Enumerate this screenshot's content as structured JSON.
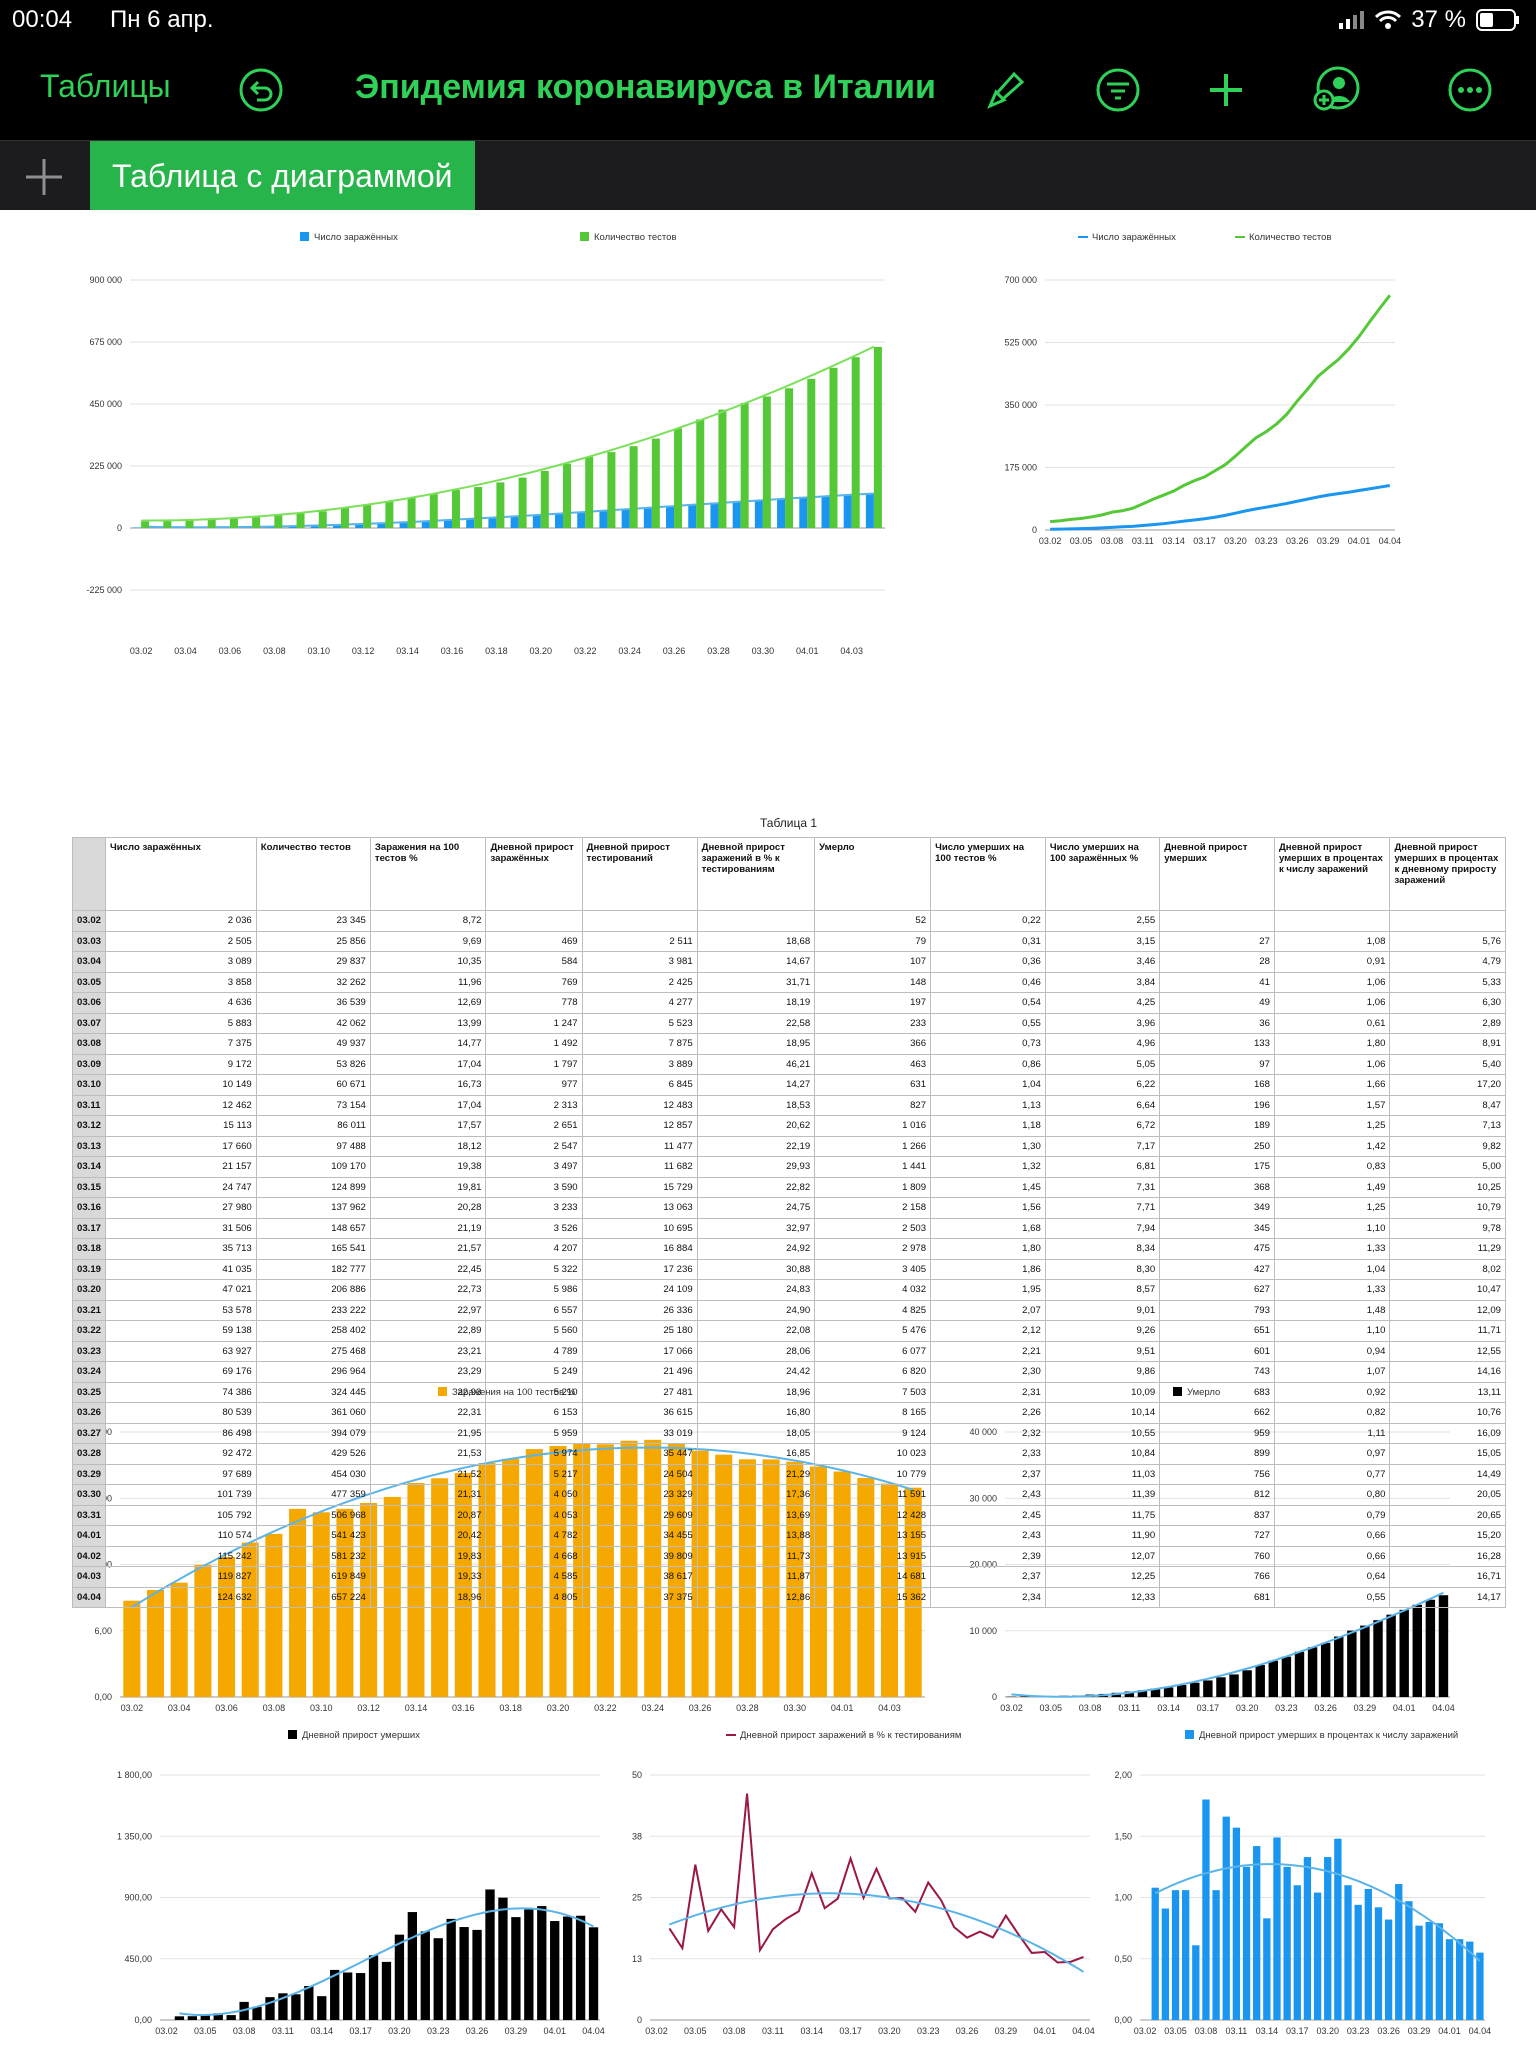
{
  "status": {
    "time": "00:04",
    "date": "Пн 6 апр.",
    "battery": "37 %"
  },
  "toolbar": {
    "back_label": "Таблицы",
    "title": "Эпидемия коронавируса в Италии"
  },
  "tabs": [
    {
      "label": "Таблица с диаграммой"
    }
  ],
  "table": {
    "title": "Таблица 1",
    "headers": [
      "Число заражённых",
      "Количество тестов",
      "Заражения на 100 тестов %",
      "Дневной прирост заражённых",
      "Дневной прирост тестирований",
      "Дневной прирост заражений в % к тестированиям",
      "Умерло",
      "Число умерших на 100 тестов %",
      "Число умерших на 100 заражённых %",
      "Дневной прирост умерших",
      "Дневной прирост умерших в процентах к числу заражений",
      "Дневной прирост умерших в процентах к дневному приросту заражений"
    ],
    "rows": [
      [
        "03.02",
        "2 036",
        "23 345",
        "8,72",
        "",
        "",
        "",
        "52",
        "0,22",
        "2,55",
        "",
        "",
        ""
      ],
      [
        "03.03",
        "2 505",
        "25 856",
        "9,69",
        "469",
        "2 511",
        "18,68",
        "79",
        "0,31",
        "3,15",
        "27",
        "1,08",
        "5,76"
      ],
      [
        "03.04",
        "3 089",
        "29 837",
        "10,35",
        "584",
        "3 981",
        "14,67",
        "107",
        "0,36",
        "3,46",
        "28",
        "0,91",
        "4,79"
      ],
      [
        "03.05",
        "3 858",
        "32 262",
        "11,96",
        "769",
        "2 425",
        "31,71",
        "148",
        "0,46",
        "3,84",
        "41",
        "1,06",
        "5,33"
      ],
      [
        "03.06",
        "4 636",
        "36 539",
        "12,69",
        "778",
        "4 277",
        "18,19",
        "197",
        "0,54",
        "4,25",
        "49",
        "1,06",
        "6,30"
      ],
      [
        "03.07",
        "5 883",
        "42 062",
        "13,99",
        "1 247",
        "5 523",
        "22,58",
        "233",
        "0,55",
        "3,96",
        "36",
        "0,61",
        "2,89"
      ],
      [
        "03.08",
        "7 375",
        "49 937",
        "14,77",
        "1 492",
        "7 875",
        "18,95",
        "366",
        "0,73",
        "4,96",
        "133",
        "1,80",
        "8,91"
      ],
      [
        "03.09",
        "9 172",
        "53 826",
        "17,04",
        "1 797",
        "3 889",
        "46,21",
        "463",
        "0,86",
        "5,05",
        "97",
        "1,06",
        "5,40"
      ],
      [
        "03.10",
        "10 149",
        "60 671",
        "16,73",
        "977",
        "6 845",
        "14,27",
        "631",
        "1,04",
        "6,22",
        "168",
        "1,66",
        "17,20"
      ],
      [
        "03.11",
        "12 462",
        "73 154",
        "17,04",
        "2 313",
        "12 483",
        "18,53",
        "827",
        "1,13",
        "6,64",
        "196",
        "1,57",
        "8,47"
      ],
      [
        "03.12",
        "15 113",
        "86 011",
        "17,57",
        "2 651",
        "12 857",
        "20,62",
        "1 016",
        "1,18",
        "6,72",
        "189",
        "1,25",
        "7,13"
      ],
      [
        "03.13",
        "17 660",
        "97 488",
        "18,12",
        "2 547",
        "11 477",
        "22,19",
        "1 266",
        "1,30",
        "7,17",
        "250",
        "1,42",
        "9,82"
      ],
      [
        "03.14",
        "21 157",
        "109 170",
        "19,38",
        "3 497",
        "11 682",
        "29,93",
        "1 441",
        "1,32",
        "6,81",
        "175",
        "0,83",
        "5,00"
      ],
      [
        "03.15",
        "24 747",
        "124 899",
        "19,81",
        "3 590",
        "15 729",
        "22,82",
        "1 809",
        "1,45",
        "7,31",
        "368",
        "1,49",
        "10,25"
      ],
      [
        "03.16",
        "27 980",
        "137 962",
        "20,28",
        "3 233",
        "13 063",
        "24,75",
        "2 158",
        "1,56",
        "7,71",
        "349",
        "1,25",
        "10,79"
      ],
      [
        "03.17",
        "31 506",
        "148 657",
        "21,19",
        "3 526",
        "10 695",
        "32,97",
        "2 503",
        "1,68",
        "7,94",
        "345",
        "1,10",
        "9,78"
      ],
      [
        "03.18",
        "35 713",
        "165 541",
        "21,57",
        "4 207",
        "16 884",
        "24,92",
        "2 978",
        "1,80",
        "8,34",
        "475",
        "1,33",
        "11,29"
      ],
      [
        "03.19",
        "41 035",
        "182 777",
        "22,45",
        "5 322",
        "17 236",
        "30,88",
        "3 405",
        "1,86",
        "8,30",
        "427",
        "1,04",
        "8,02"
      ],
      [
        "03.20",
        "47 021",
        "206 886",
        "22,73",
        "5 986",
        "24 109",
        "24,83",
        "4 032",
        "1,95",
        "8,57",
        "627",
        "1,33",
        "10,47"
      ],
      [
        "03.21",
        "53 578",
        "233 222",
        "22,97",
        "6 557",
        "26 336",
        "24,90",
        "4 825",
        "2,07",
        "9,01",
        "793",
        "1,48",
        "12,09"
      ],
      [
        "03.22",
        "59 138",
        "258 402",
        "22,89",
        "5 560",
        "25 180",
        "22,08",
        "5 476",
        "2,12",
        "9,26",
        "651",
        "1,10",
        "11,71"
      ],
      [
        "03.23",
        "63 927",
        "275 468",
        "23,21",
        "4 789",
        "17 066",
        "28,06",
        "6 077",
        "2,21",
        "9,51",
        "601",
        "0,94",
        "12,55"
      ],
      [
        "03.24",
        "69 176",
        "296 964",
        "23,29",
        "5 249",
        "21 496",
        "24,42",
        "6 820",
        "2,30",
        "9,86",
        "743",
        "1,07",
        "14,16"
      ],
      [
        "03.25",
        "74 386",
        "324 445",
        "22,93",
        "5 210",
        "27 481",
        "18,96",
        "7 503",
        "2,31",
        "10,09",
        "683",
        "0,92",
        "13,11"
      ],
      [
        "03.26",
        "80 539",
        "361 060",
        "22,31",
        "6 153",
        "36 615",
        "16,80",
        "8 165",
        "2,26",
        "10,14",
        "662",
        "0,82",
        "10,76"
      ],
      [
        "03.27",
        "86 498",
        "394 079",
        "21,95",
        "5 959",
        "33 019",
        "18,05",
        "9 124",
        "2,32",
        "10,55",
        "959",
        "1,11",
        "16,09"
      ],
      [
        "03.28",
        "92 472",
        "429 526",
        "21,53",
        "5 974",
        "35 447",
        "16,85",
        "10 023",
        "2,33",
        "10,84",
        "899",
        "0,97",
        "15,05"
      ],
      [
        "03.29",
        "97 689",
        "454 030",
        "21,52",
        "5 217",
        "24 504",
        "21,29",
        "10 779",
        "2,37",
        "11,03",
        "756",
        "0,77",
        "14,49"
      ],
      [
        "03.30",
        "101 739",
        "477 359",
        "21,31",
        "4 050",
        "23 329",
        "17,36",
        "11 591",
        "2,43",
        "11,39",
        "812",
        "0,80",
        "20,05"
      ],
      [
        "03.31",
        "105 792",
        "506 968",
        "20,87",
        "4 053",
        "29 609",
        "13,69",
        "12 428",
        "2,45",
        "11,75",
        "837",
        "0,79",
        "20,65"
      ],
      [
        "04.01",
        "110 574",
        "541 423",
        "20,42",
        "4 782",
        "34 455",
        "13,88",
        "13 155",
        "2,43",
        "11,90",
        "727",
        "0,66",
        "15,20"
      ],
      [
        "04.02",
        "115 242",
        "581 232",
        "19,83",
        "4 668",
        "39 809",
        "11,73",
        "13 915",
        "2,39",
        "12,07",
        "760",
        "0,66",
        "16,28"
      ],
      [
        "04.03",
        "119 827",
        "619 849",
        "19,33",
        "4 585",
        "38 617",
        "11,87",
        "14 681",
        "2,37",
        "12,25",
        "766",
        "0,64",
        "16,71"
      ],
      [
        "04.04",
        "124 632",
        "657 224",
        "18,96",
        "4 805",
        "37 375",
        "12,86",
        "15 362",
        "2,34",
        "12,33",
        "681",
        "0,55",
        "14,17"
      ]
    ]
  },
  "chart_data": [
    {
      "id": "c1",
      "type": "bar",
      "categories_source": "table",
      "series": [
        {
          "name": "Число заражённых",
          "column": 1,
          "color": "#1a96f0"
        },
        {
          "name": "Количество тестов",
          "column": 2,
          "color": "#55c837"
        }
      ],
      "ylim": [
        -225000,
        900000
      ],
      "yticks": [
        "900 000",
        "675 000",
        "450 000",
        "225 000",
        "0",
        "-225 000"
      ],
      "xticks": [
        "03.02",
        "03.04",
        "03.06",
        "03.08",
        "03.10",
        "03.12",
        "03.14",
        "03.16",
        "03.18",
        "03.20",
        "03.22",
        "03.24",
        "03.26",
        "03.28",
        "03.30",
        "04.01",
        "04.03"
      ],
      "trendline": true,
      "legend": "top"
    },
    {
      "id": "c2",
      "type": "line",
      "series": [
        {
          "name": "Число заражённых",
          "column": 1,
          "color": "#1a96f0"
        },
        {
          "name": "Количество тестов",
          "column": 2,
          "color": "#55c837"
        }
      ],
      "ylim": [
        0,
        700000
      ],
      "yticks": [
        "700 000",
        "525 000",
        "350 000",
        "175 000",
        "0"
      ],
      "xticks": [
        "03.02",
        "03.05",
        "03.08",
        "03.11",
        "03.14",
        "03.17",
        "03.20",
        "03.23",
        "03.26",
        "03.29",
        "04.01",
        "04.04"
      ],
      "legend": "top"
    },
    {
      "id": "c3",
      "type": "bar",
      "series": [
        {
          "name": "Заражения на 100 тестов %",
          "column": 3,
          "color": "#f5a800"
        }
      ],
      "ylim": [
        0,
        24
      ],
      "yticks": [
        "24,00",
        "18,00",
        "12,00",
        "6,00",
        "0,00"
      ],
      "xticks": [
        "03.02",
        "03.04",
        "03.06",
        "03.08",
        "03.10",
        "03.12",
        "03.14",
        "03.16",
        "03.18",
        "03.20",
        "03.22",
        "03.24",
        "03.26",
        "03.28",
        "03.30",
        "04.01",
        "04.03"
      ],
      "trendline": true,
      "legend": "top"
    },
    {
      "id": "c4",
      "type": "bar",
      "series": [
        {
          "name": "Умерло",
          "column": 7,
          "color": "#000000"
        }
      ],
      "ylim": [
        0,
        40000
      ],
      "yticks": [
        "40 000",
        "30 000",
        "20 000",
        "10 000",
        "0"
      ],
      "xticks": [
        "03.02",
        "03.05",
        "03.08",
        "03.11",
        "03.14",
        "03.17",
        "03.20",
        "03.23",
        "03.26",
        "03.29",
        "04.01",
        "04.04"
      ],
      "trendline": true,
      "legend": "top"
    },
    {
      "id": "c5",
      "type": "bar",
      "series": [
        {
          "name": "Дневной прирост умерших",
          "column": 10,
          "color": "#000000"
        }
      ],
      "ylim": [
        0,
        1800
      ],
      "yticks": [
        "1 800,00",
        "1 350,00",
        "900,00",
        "450,00",
        "0,00"
      ],
      "xticks": [
        "03.02",
        "03.05",
        "03.08",
        "03.11",
        "03.14",
        "03.17",
        "03.20",
        "03.23",
        "03.26",
        "03.29",
        "04.01",
        "04.04"
      ],
      "trendline": true,
      "legend": "top"
    },
    {
      "id": "c6",
      "type": "line",
      "series": [
        {
          "name": "Дневной прирост заражений в % к тестированиям",
          "column": 6,
          "color": "#9b1846"
        }
      ],
      "ylim": [
        0,
        50
      ],
      "yticks": [
        "50",
        "38",
        "25",
        "13",
        "0"
      ],
      "xticks": [
        "03.02",
        "03.05",
        "03.08",
        "03.11",
        "03.14",
        "03.17",
        "03.20",
        "03.23",
        "03.26",
        "03.29",
        "04.01",
        "04.04"
      ],
      "trendline": true,
      "legend": "top"
    },
    {
      "id": "c7",
      "type": "bar",
      "series": [
        {
          "name": "Дневной прирост умерших в процентах к числу заражений",
          "column": 11,
          "color": "#1a96f0"
        }
      ],
      "ylim": [
        0,
        2
      ],
      "yticks": [
        "2,00",
        "1,50",
        "1,00",
        "0,50",
        "0,00"
      ],
      "xticks": [
        "03.02",
        "03.05",
        "03.08",
        "03.11",
        "03.14",
        "03.17",
        "03.20",
        "03.23",
        "03.26",
        "03.29",
        "04.01",
        "04.04"
      ],
      "trendline": true,
      "legend": "top"
    }
  ],
  "colors": {
    "accent": "#2fd158",
    "tab": "#27b44a",
    "trend": "#5ab4ea"
  }
}
